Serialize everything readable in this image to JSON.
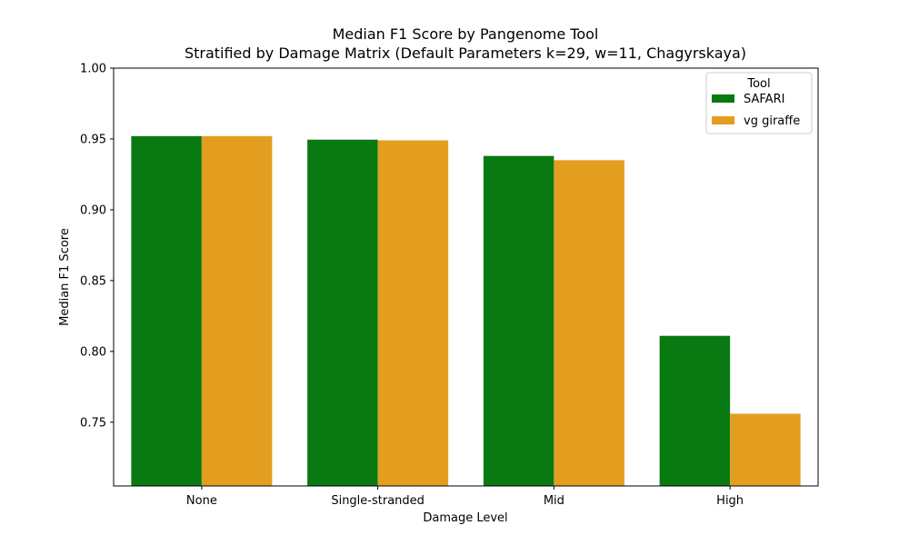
{
  "chart_data": {
    "type": "bar",
    "title": "Median F1 Score by Pangenome Tool",
    "subtitle": "Stratified by Damage Matrix (Default Parameters k=29, w=11, Chagyrskaya)",
    "xlabel": "Damage Level",
    "ylabel": "Median F1 Score",
    "categories": [
      "None",
      "Single-stranded",
      "Mid",
      "High"
    ],
    "series": [
      {
        "name": "SAFARI",
        "color": "#097912",
        "values": [
          0.952,
          0.9495,
          0.938,
          0.811
        ]
      },
      {
        "name": "vg giraffe",
        "color": "#E39E1F",
        "values": [
          0.952,
          0.949,
          0.935,
          0.756
        ]
      }
    ],
    "ylim": [
      0.705,
      1.0
    ],
    "yticks": [
      "0.75",
      "0.80",
      "0.85",
      "0.90",
      "0.95",
      "1.00"
    ],
    "grid": false,
    "legend": {
      "title": "Tool",
      "placement": "top-right"
    }
  }
}
